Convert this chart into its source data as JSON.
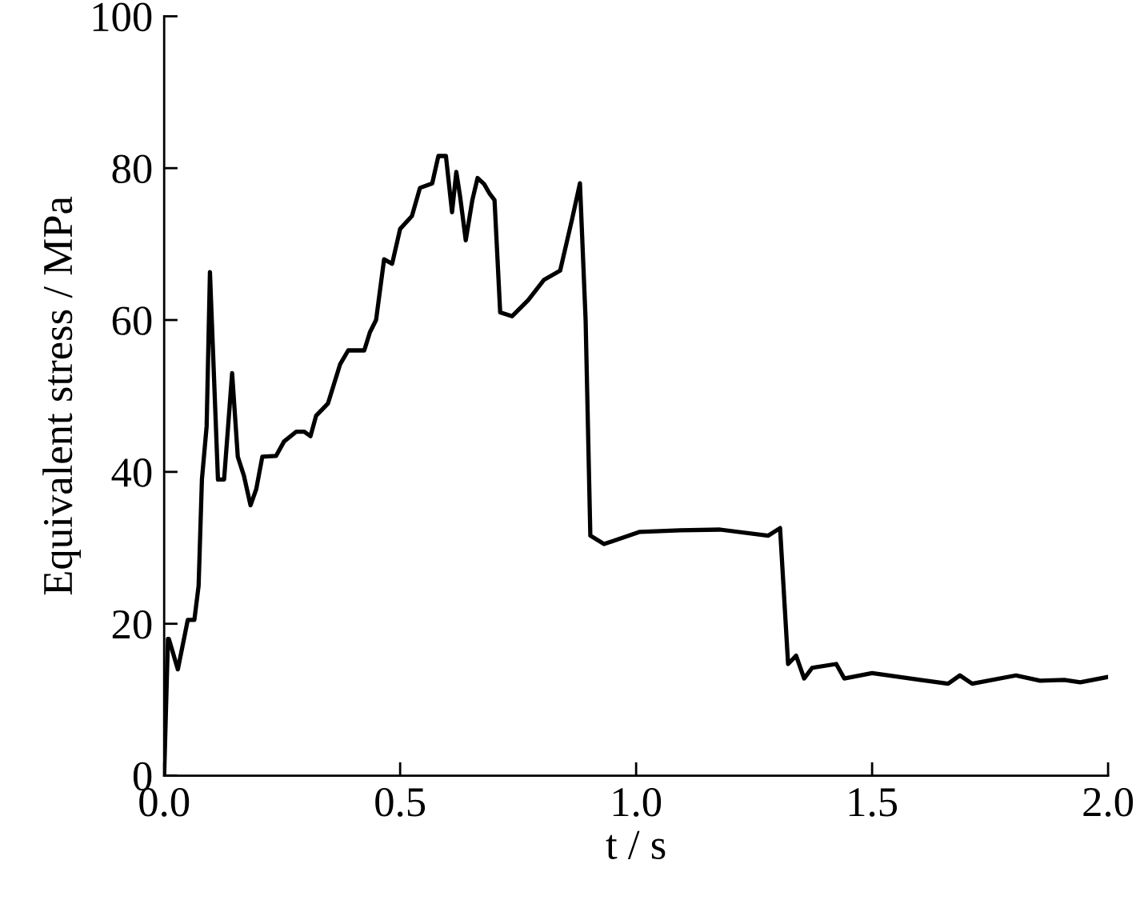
{
  "chart_data": {
    "type": "line",
    "xlabel": "t / s",
    "ylabel": "Equivalent stress / MPa",
    "xlim": [
      0,
      2.0
    ],
    "xticks": [
      {
        "value": 0,
        "label": "0.0"
      },
      0.5,
      {
        "value": 1,
        "label": "1.0"
      },
      1.5,
      {
        "value": 2,
        "label": "2.0"
      }
    ],
    "ylim": [
      0,
      100
    ],
    "yticks": [
      0,
      20,
      40,
      60,
      80,
      100
    ],
    "grid": false,
    "legend": false,
    "marker": "none",
    "line_style": "solid",
    "series": [
      {
        "color": "#000000",
        "x": [
          0,
          0.008,
          0.01,
          0.029,
          0.05,
          0.064,
          0.073,
          0.08,
          0.09,
          0.097,
          0.114,
          0.127,
          0.144,
          0.156,
          0.169,
          0.183,
          0.195,
          0.208,
          0.237,
          0.254,
          0.28,
          0.297,
          0.31,
          0.322,
          0.347,
          0.373,
          0.39,
          0.424,
          0.436,
          0.449,
          0.466,
          0.483,
          0.5,
          0.525,
          0.542,
          0.568,
          0.581,
          0.597,
          0.61,
          0.619,
          0.627,
          0.639,
          0.653,
          0.664,
          0.678,
          0.69,
          0.7,
          0.712,
          0.737,
          0.771,
          0.805,
          0.839,
          0.864,
          0.881,
          0.893,
          0.903,
          0.932,
          1.008,
          1.093,
          1.178,
          1.28,
          1.305,
          1.322,
          1.339,
          1.356,
          1.373,
          1.424,
          1.441,
          1.5,
          1.602,
          1.661,
          1.686,
          1.712,
          1.805,
          1.856,
          1.907,
          1.941,
          2.0
        ],
        "values": [
          0,
          18,
          18,
          14,
          20.5,
          20.5,
          25,
          39,
          46,
          66.3,
          39,
          39,
          53,
          42,
          39.5,
          35.6,
          37.7,
          42,
          42.1,
          44,
          45.3,
          45.3,
          44.7,
          47.4,
          49,
          54.2,
          56,
          56,
          58.4,
          60,
          68,
          67.4,
          72,
          73.7,
          77.4,
          78,
          81.6,
          81.6,
          74.2,
          79.5,
          76.3,
          70.5,
          75.8,
          78.7,
          77.9,
          76.6,
          75.8,
          61,
          60.5,
          62.6,
          65.3,
          66.5,
          73.2,
          78,
          60,
          31.6,
          30.5,
          32.1,
          32.3,
          32.4,
          31.6,
          32.6,
          14.7,
          15.8,
          12.8,
          14.2,
          14.7,
          12.8,
          13.5,
          12.6,
          12.1,
          13.2,
          12.1,
          13.2,
          12.5,
          12.6,
          12.3,
          13
        ]
      }
    ]
  }
}
